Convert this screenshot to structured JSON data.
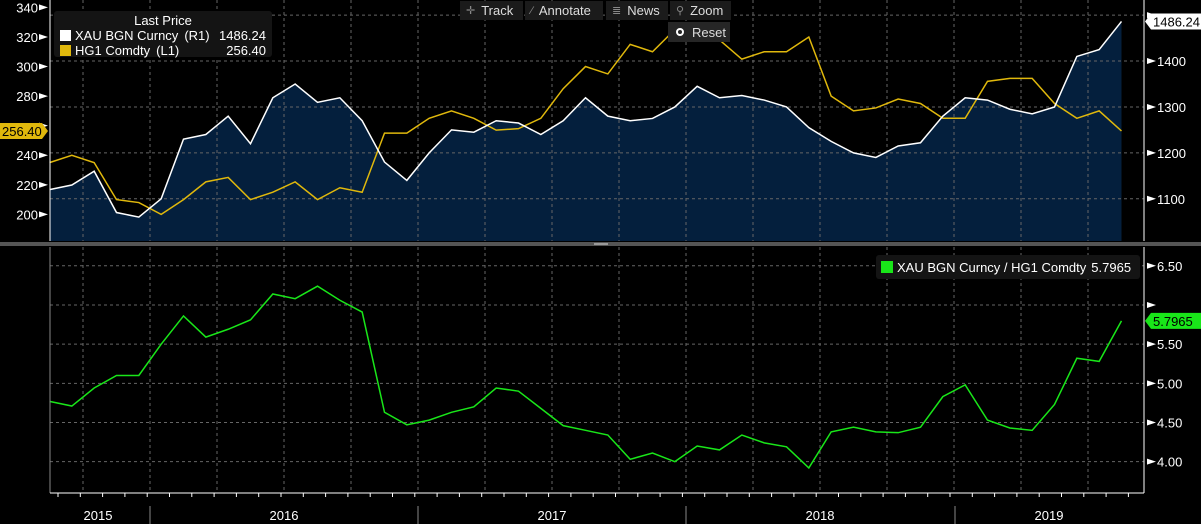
{
  "toolbar": {
    "track": "Track",
    "annotate": "Annotate",
    "news": "News",
    "zoom": "Zoom",
    "reset": "Reset"
  },
  "chart_data": [
    {
      "type": "line",
      "panel": "top",
      "legend_title": "Last Price",
      "legend_placement": "top-left",
      "grid": true,
      "x_axis_labels": [
        "2015",
        "2016",
        "2017",
        "2018",
        "2019"
      ],
      "dates": [
        "2015-08",
        "2015-09",
        "2015-10",
        "2015-11",
        "2015-12",
        "2016-01",
        "2016-02",
        "2016-03",
        "2016-04",
        "2016-05",
        "2016-06",
        "2016-07",
        "2016-08",
        "2016-09",
        "2016-10",
        "2016-11",
        "2016-12",
        "2017-01",
        "2017-02",
        "2017-03",
        "2017-04",
        "2017-05",
        "2017-06",
        "2017-07",
        "2017-08",
        "2017-09",
        "2017-10",
        "2017-11",
        "2017-12",
        "2018-01",
        "2018-02",
        "2018-03",
        "2018-04",
        "2018-05",
        "2018-06",
        "2018-07",
        "2018-08",
        "2018-09",
        "2018-10",
        "2018-11",
        "2018-12",
        "2019-01",
        "2019-02",
        "2019-03",
        "2019-04",
        "2019-05",
        "2019-06",
        "2019-07",
        "2019-08"
      ],
      "series": [
        {
          "name": "XAU BGN Curncy",
          "axis": "(R1)",
          "last": "1486.24",
          "color": "#ffffff",
          "area_fill": "#041f3d",
          "ylim": [
            1008,
            1533
          ],
          "ticks": [
            1100,
            1200,
            1300,
            1400,
            1500
          ],
          "values": [
            1120,
            1130,
            1160,
            1070,
            1060,
            1100,
            1230,
            1240,
            1280,
            1220,
            1320,
            1350,
            1310,
            1320,
            1270,
            1180,
            1140,
            1200,
            1250,
            1245,
            1270,
            1265,
            1240,
            1270,
            1320,
            1280,
            1270,
            1275,
            1300,
            1345,
            1320,
            1325,
            1315,
            1300,
            1255,
            1225,
            1200,
            1190,
            1215,
            1222,
            1280,
            1320,
            1315,
            1295,
            1285,
            1300,
            1410,
            1425,
            1486.24
          ]
        },
        {
          "name": "HG1 Comdty",
          "axis": "(L1)",
          "last": "256.40",
          "color": "#e0b80c",
          "ylim": [
            182,
            345
          ],
          "ticks": [
            200,
            220,
            240,
            260,
            280,
            300,
            320,
            340
          ],
          "values": [
            235,
            240,
            235,
            210,
            208,
            200,
            210,
            222,
            225,
            210,
            215,
            222,
            210,
            218,
            215,
            255,
            255,
            265,
            270,
            265,
            257,
            258,
            265,
            285,
            300,
            295,
            315,
            310,
            325,
            320,
            318,
            305,
            310,
            310,
            320,
            280,
            270,
            272,
            278,
            275,
            265,
            265,
            290,
            292,
            292,
            275,
            265,
            270,
            256.4
          ]
        }
      ]
    },
    {
      "type": "line",
      "panel": "bottom",
      "legend_placement": "top-right",
      "grid": true,
      "series": [
        {
          "name": "XAU BGN Curncy / HG1 Comdty",
          "last": "5.7965",
          "color": "#19e619",
          "ylim": [
            3.6,
            6.74
          ],
          "ticks": [
            "4.00",
            "4.50",
            "5.00",
            "5.50",
            "6.00",
            "6.50"
          ],
          "values": [
            4.77,
            4.71,
            4.94,
            5.1,
            5.1,
            5.5,
            5.86,
            5.59,
            5.69,
            5.81,
            6.14,
            6.08,
            6.24,
            6.06,
            5.91,
            4.63,
            4.47,
            4.53,
            4.63,
            4.7,
            4.94,
            4.9,
            4.68,
            4.46,
            4.4,
            4.34,
            4.03,
            4.11,
            4.0,
            4.2,
            4.15,
            4.34,
            4.24,
            4.19,
            3.92,
            4.38,
            4.44,
            4.38,
            4.37,
            4.44,
            4.83,
            4.98,
            4.53,
            4.43,
            4.4,
            4.73,
            5.32,
            5.28,
            5.7965
          ]
        }
      ]
    }
  ]
}
